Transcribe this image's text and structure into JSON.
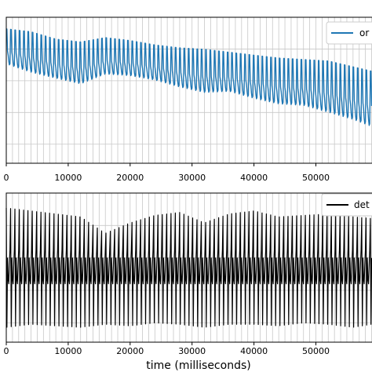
{
  "chart_data": [
    {
      "type": "line",
      "panel": "top",
      "series": [
        {
          "name": "or",
          "color": "#1f77b4",
          "x": [
            0,
            4000,
            8000,
            12000,
            16000,
            20000,
            24000,
            28000,
            32000,
            36000,
            40000,
            44000,
            48000,
            52000,
            56000,
            59000
          ],
          "y_upper": [
            0.92,
            0.9,
            0.85,
            0.83,
            0.86,
            0.84,
            0.81,
            0.79,
            0.78,
            0.76,
            0.74,
            0.72,
            0.71,
            0.7,
            0.66,
            0.63
          ],
          "y_lower": [
            0.66,
            0.6,
            0.56,
            0.52,
            0.59,
            0.58,
            0.55,
            0.5,
            0.46,
            0.47,
            0.42,
            0.38,
            0.37,
            0.32,
            0.27,
            0.22
          ]
        }
      ],
      "xlim": [
        0,
        59000
      ],
      "xticks": [
        "0",
        "10000",
        "20000",
        "30000",
        "40000",
        "50000"
      ],
      "grid": true,
      "legend": "top-right"
    },
    {
      "type": "line",
      "panel": "bottom",
      "series": [
        {
          "name": "det",
          "color": "#000000",
          "x": [
            0,
            4000,
            8000,
            12000,
            16000,
            20000,
            24000,
            28000,
            32000,
            36000,
            40000,
            44000,
            48000,
            52000,
            56000,
            59000
          ],
          "y_upper": [
            0.9,
            0.88,
            0.86,
            0.84,
            0.73,
            0.8,
            0.85,
            0.87,
            0.8,
            0.86,
            0.88,
            0.84,
            0.85,
            0.86,
            0.84,
            0.83
          ],
          "y_lower": [
            0.1,
            0.12,
            0.11,
            0.1,
            0.12,
            0.11,
            0.13,
            0.12,
            0.1,
            0.12,
            0.12,
            0.11,
            0.13,
            0.12,
            0.1,
            0.12
          ]
        }
      ],
      "xlim": [
        0,
        59000
      ],
      "xticks": [
        "0",
        "10000",
        "20000",
        "30000",
        "40000",
        "50000"
      ],
      "xlabel": "time (milliseconds)",
      "grid": true,
      "legend": "top-right"
    }
  ]
}
